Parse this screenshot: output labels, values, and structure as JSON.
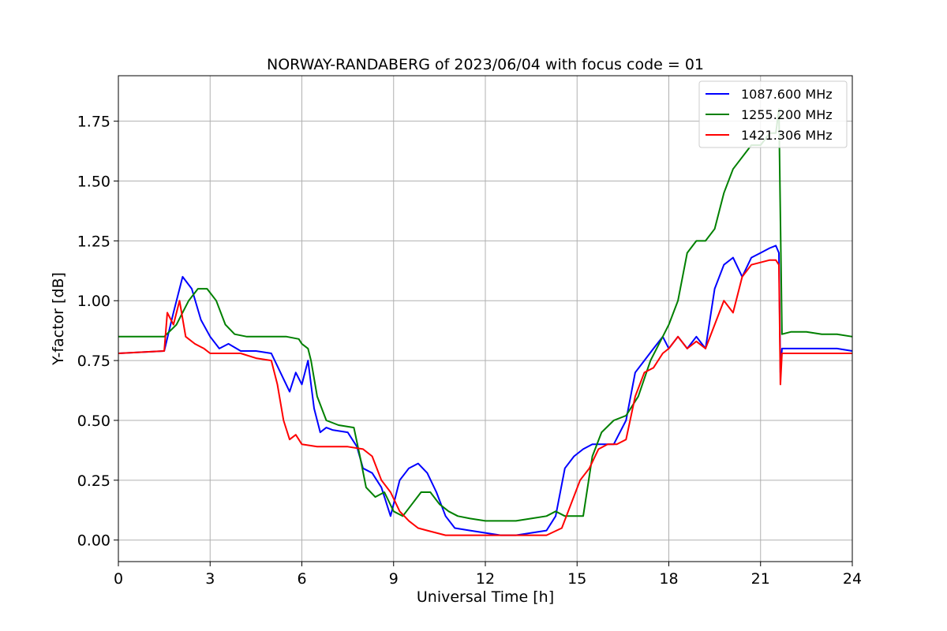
{
  "chart_data": {
    "type": "line",
    "title": "NORWAY-RANDABERG of 2023/06/04 with focus code = 01",
    "xlabel": "Universal Time [h]",
    "ylabel": "Y-factor [dB]",
    "xlim": [
      0,
      24
    ],
    "ylim": [
      -0.09,
      1.94
    ],
    "xticks": [
      0,
      3,
      6,
      9,
      12,
      15,
      18,
      21,
      24
    ],
    "xtick_labels": [
      "0",
      "3",
      "6",
      "9",
      "12",
      "15",
      "18",
      "21",
      "24"
    ],
    "yticks": [
      0.0,
      0.25,
      0.5,
      0.75,
      1.0,
      1.25,
      1.5,
      1.75
    ],
    "ytick_labels": [
      "0.00",
      "0.25",
      "0.50",
      "0.75",
      "1.00",
      "1.25",
      "1.50",
      "1.75"
    ],
    "grid": true,
    "legend_position": "top-right",
    "series": [
      {
        "name": "1087.600 MHz",
        "color": "#0000ff",
        "x": [
          0,
          1.5,
          1.8,
          2.1,
          2.4,
          2.7,
          3.0,
          3.3,
          3.6,
          4.0,
          4.5,
          5.0,
          5.3,
          5.6,
          5.8,
          6.0,
          6.2,
          6.4,
          6.6,
          6.8,
          7.0,
          7.5,
          7.8,
          8.0,
          8.3,
          8.6,
          8.9,
          9.2,
          9.5,
          9.8,
          10.1,
          10.4,
          10.7,
          11.0,
          11.5,
          12.0,
          12.5,
          13.0,
          13.5,
          14.0,
          14.3,
          14.6,
          14.9,
          15.2,
          15.5,
          15.8,
          16.2,
          16.6,
          16.9,
          17.2,
          17.5,
          17.8,
          18.0,
          18.3,
          18.6,
          18.9,
          19.2,
          19.5,
          19.8,
          20.1,
          20.4,
          20.7,
          21.0,
          21.3,
          21.5,
          21.6,
          21.65,
          21.7,
          22.0,
          22.5,
          23.0,
          23.5,
          24.0
        ],
        "y": [
          0.78,
          0.79,
          0.95,
          1.1,
          1.05,
          0.92,
          0.85,
          0.8,
          0.82,
          0.79,
          0.79,
          0.78,
          0.7,
          0.62,
          0.7,
          0.65,
          0.75,
          0.55,
          0.45,
          0.47,
          0.46,
          0.45,
          0.39,
          0.3,
          0.28,
          0.22,
          0.1,
          0.25,
          0.3,
          0.32,
          0.28,
          0.2,
          0.1,
          0.05,
          0.04,
          0.03,
          0.02,
          0.02,
          0.03,
          0.04,
          0.1,
          0.3,
          0.35,
          0.38,
          0.4,
          0.4,
          0.4,
          0.5,
          0.7,
          0.75,
          0.8,
          0.85,
          0.8,
          0.85,
          0.8,
          0.85,
          0.8,
          1.05,
          1.15,
          1.18,
          1.1,
          1.18,
          1.2,
          1.22,
          1.23,
          1.2,
          0.7,
          0.8,
          0.8,
          0.8,
          0.8,
          0.8,
          0.79
        ]
      },
      {
        "name": "1255.200 MHz",
        "color": "#008000",
        "x": [
          0,
          1.5,
          1.9,
          2.3,
          2.6,
          2.9,
          3.2,
          3.5,
          3.8,
          4.2,
          4.6,
          5.0,
          5.5,
          5.9,
          6.0,
          6.2,
          6.3,
          6.5,
          6.8,
          7.2,
          7.7,
          7.9,
          8.1,
          8.4,
          8.7,
          9.0,
          9.3,
          9.6,
          9.9,
          10.2,
          10.5,
          10.8,
          11.1,
          11.5,
          12.0,
          12.5,
          13.0,
          13.5,
          14.0,
          14.3,
          14.6,
          14.9,
          15.2,
          15.5,
          15.8,
          16.2,
          16.6,
          17.0,
          17.4,
          17.8,
          18.0,
          18.3,
          18.6,
          18.9,
          19.2,
          19.5,
          19.8,
          20.1,
          20.4,
          20.7,
          21.0,
          21.3,
          21.5,
          21.6,
          21.7,
          22.0,
          22.5,
          23.0,
          23.5,
          24.0
        ],
        "y": [
          0.85,
          0.85,
          0.9,
          1.0,
          1.05,
          1.05,
          1.0,
          0.9,
          0.86,
          0.85,
          0.85,
          0.85,
          0.85,
          0.84,
          0.82,
          0.8,
          0.75,
          0.6,
          0.5,
          0.48,
          0.47,
          0.35,
          0.22,
          0.18,
          0.2,
          0.12,
          0.1,
          0.15,
          0.2,
          0.2,
          0.15,
          0.12,
          0.1,
          0.09,
          0.08,
          0.08,
          0.08,
          0.09,
          0.1,
          0.12,
          0.1,
          0.1,
          0.1,
          0.35,
          0.45,
          0.5,
          0.52,
          0.6,
          0.75,
          0.85,
          0.9,
          1.0,
          1.2,
          1.25,
          1.25,
          1.3,
          1.45,
          1.55,
          1.6,
          1.65,
          1.65,
          1.7,
          1.7,
          1.8,
          0.86,
          0.87,
          0.87,
          0.86,
          0.86,
          0.85
        ]
      },
      {
        "name": "1421.306 MHz",
        "color": "#ff0000",
        "x": [
          0,
          1.5,
          1.6,
          1.8,
          2.0,
          2.2,
          2.5,
          2.8,
          3.0,
          3.5,
          4.0,
          4.5,
          5.0,
          5.2,
          5.4,
          5.6,
          5.8,
          6.0,
          6.5,
          7.0,
          7.5,
          8.0,
          8.3,
          8.6,
          8.9,
          9.2,
          9.5,
          9.8,
          10.1,
          10.4,
          10.7,
          11.0,
          11.5,
          12.0,
          12.5,
          13.0,
          13.5,
          14.0,
          14.5,
          14.8,
          15.1,
          15.4,
          15.7,
          16.0,
          16.3,
          16.6,
          16.9,
          17.2,
          17.5,
          17.8,
          18.0,
          18.3,
          18.6,
          18.9,
          19.2,
          19.5,
          19.8,
          20.1,
          20.4,
          20.7,
          21.0,
          21.3,
          21.5,
          21.6,
          21.65,
          21.7,
          22.0,
          22.5,
          23.0,
          23.5,
          24.0
        ],
        "y": [
          0.78,
          0.79,
          0.95,
          0.9,
          1.0,
          0.85,
          0.82,
          0.8,
          0.78,
          0.78,
          0.78,
          0.76,
          0.75,
          0.65,
          0.5,
          0.42,
          0.44,
          0.4,
          0.39,
          0.39,
          0.39,
          0.38,
          0.35,
          0.25,
          0.2,
          0.12,
          0.08,
          0.05,
          0.04,
          0.03,
          0.02,
          0.02,
          0.02,
          0.02,
          0.02,
          0.02,
          0.02,
          0.02,
          0.05,
          0.15,
          0.25,
          0.3,
          0.38,
          0.4,
          0.4,
          0.42,
          0.6,
          0.7,
          0.72,
          0.78,
          0.8,
          0.85,
          0.8,
          0.83,
          0.8,
          0.9,
          1.0,
          0.95,
          1.1,
          1.15,
          1.16,
          1.17,
          1.17,
          1.15,
          0.65,
          0.78,
          0.78,
          0.78,
          0.78,
          0.78,
          0.78
        ]
      }
    ]
  }
}
